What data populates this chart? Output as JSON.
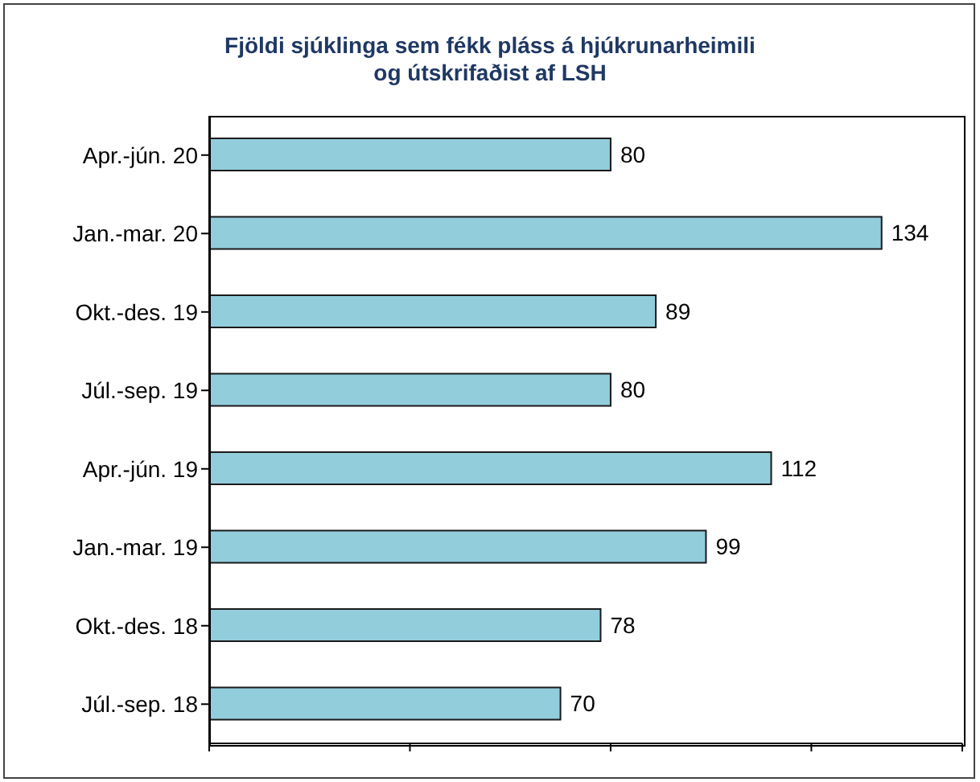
{
  "chart_data": {
    "type": "bar",
    "orientation": "horizontal",
    "title": "Fjöldi sjúklinga sem fékk pláss á hjúkrunarheimili\nog útskrifaðist af LSH",
    "categories": [
      "Apr.-jún. 20",
      "Jan.-mar. 20",
      "Okt.-des. 19",
      "Júl.-sep. 19",
      "Apr.-jún. 19",
      "Jan.-mar. 19",
      "Okt.-des. 18",
      "Júl.-sep. 18"
    ],
    "values": [
      80,
      134,
      89,
      80,
      112,
      99,
      78,
      70
    ],
    "color": "#92cddc",
    "data_labels": true,
    "grid": false,
    "legend": false
  }
}
